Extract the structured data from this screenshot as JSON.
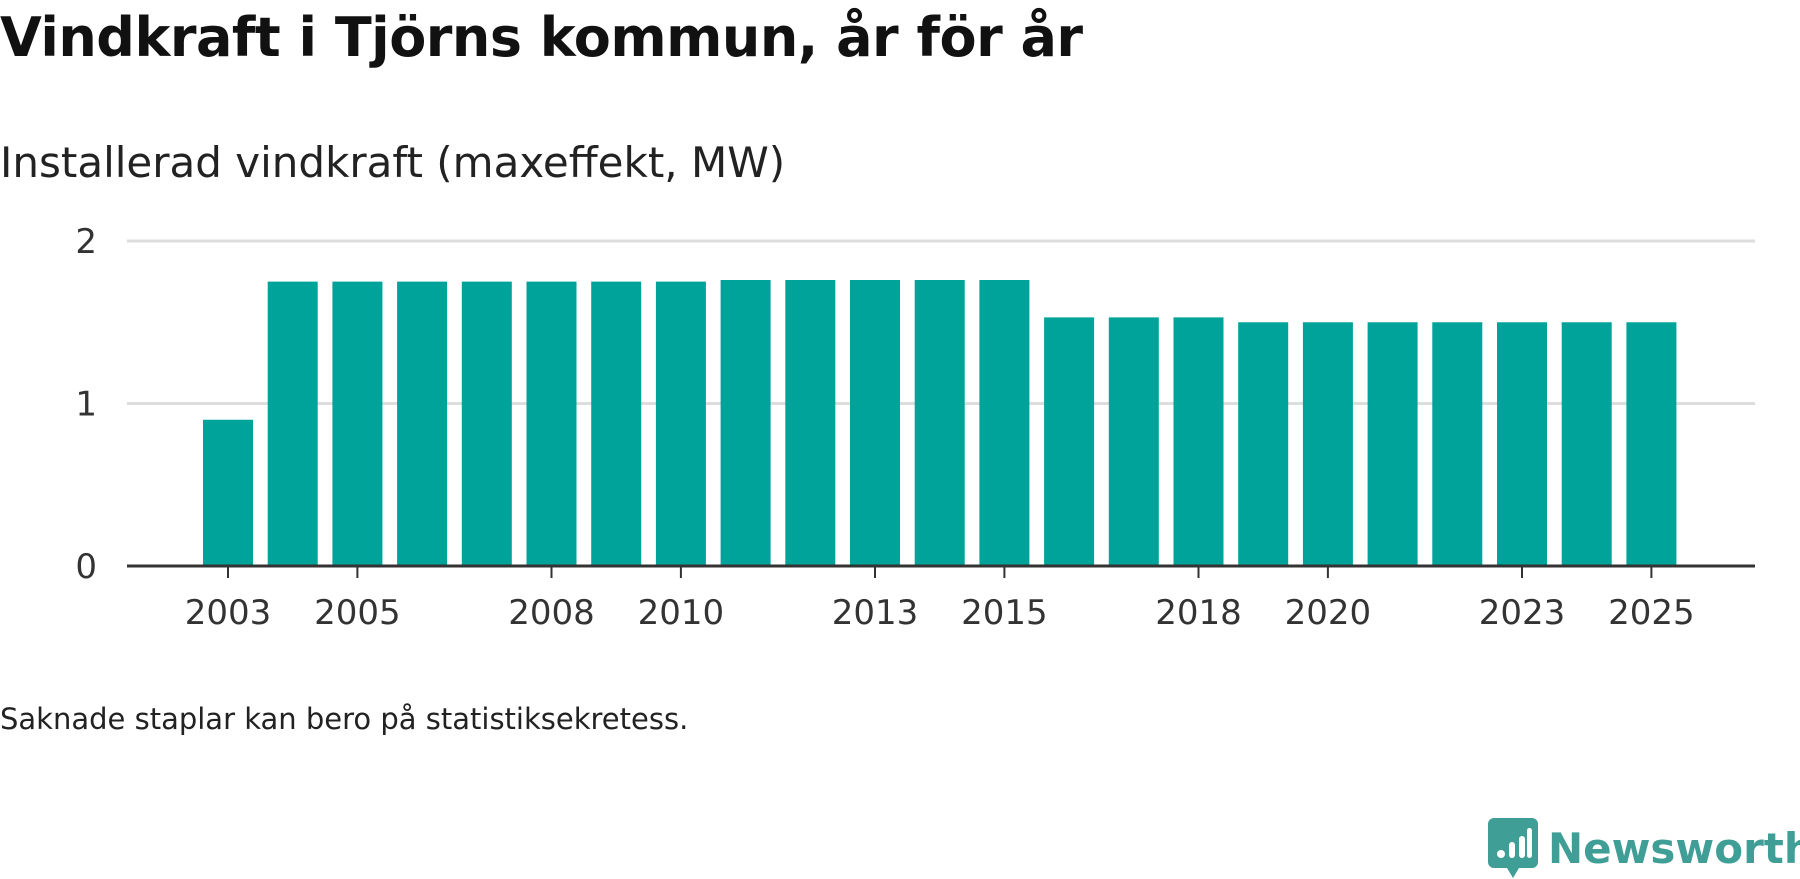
{
  "page": {
    "title": "Vindkraft i Tjörns kommun, år för år",
    "footnote": "Saknade staplar kan bero på statistiksekretess.",
    "brand": "Newsworthy",
    "brand_icon": "newsworthy-logo-icon"
  },
  "colors": {
    "bar": "#00a39a",
    "grid": "#dddddd",
    "axis": "#333333",
    "brand": "#3f9e96"
  },
  "chart_data": {
    "type": "bar",
    "title": "Vindkraft i Tjörns kommun, år för år",
    "subtitle": "Installerad vindkraft (maxeffekt, MW)",
    "xlabel": "",
    "ylabel": "",
    "categories": [
      "2003",
      "2004",
      "2005",
      "2006",
      "2007",
      "2008",
      "2009",
      "2010",
      "2011",
      "2012",
      "2013",
      "2014",
      "2015",
      "2016",
      "2017",
      "2018",
      "2019",
      "2020",
      "2021",
      "2022",
      "2023",
      "2024",
      "2025"
    ],
    "values": [
      0.9,
      1.75,
      1.75,
      1.75,
      1.75,
      1.75,
      1.75,
      1.75,
      1.76,
      1.76,
      1.76,
      1.76,
      1.76,
      1.53,
      1.53,
      1.53,
      1.5,
      1.5,
      1.5,
      1.5,
      1.5,
      1.5,
      1.5
    ],
    "x_tick_labels": [
      "2003",
      "2005",
      "2008",
      "2010",
      "2013",
      "2015",
      "2018",
      "2020",
      "2023",
      "2025"
    ],
    "y_ticks": [
      0,
      1,
      2
    ],
    "ylim": [
      0,
      2
    ],
    "grid": true,
    "legend": "none"
  }
}
